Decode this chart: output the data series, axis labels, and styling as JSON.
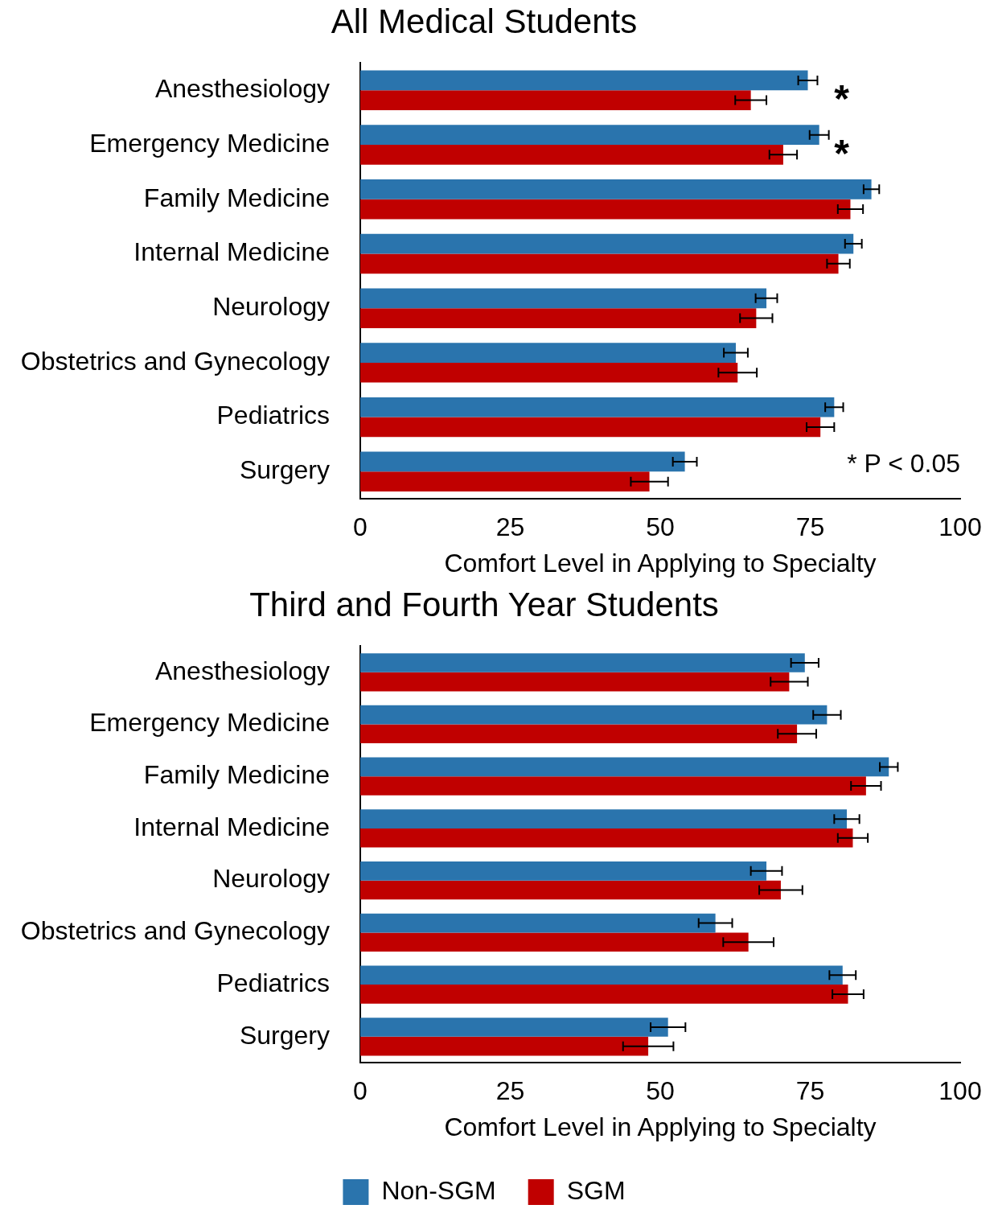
{
  "chart_data": [
    {
      "type": "bar",
      "orientation": "horizontal",
      "title": "All Medical Students",
      "xlabel": "Comfort Level in Applying to Specialty",
      "categories": [
        "Anesthesiology",
        "Emergency Medicine",
        "Family Medicine",
        "Internal Medicine",
        "Neurology",
        "Obstetrics and Gynecology",
        "Pediatrics",
        "Surgery"
      ],
      "series": [
        {
          "color": "#2a74ad",
          "values": [
            74.6,
            76.5,
            85.2,
            82.2,
            67.7,
            62.6,
            79.0,
            54.1
          ],
          "errors": [
            1.6,
            1.6,
            1.3,
            1.4,
            1.8,
            2.0,
            1.5,
            2.0
          ]
        },
        {
          "color": "#c00000",
          "values": [
            65.1,
            70.5,
            81.7,
            79.7,
            66.0,
            62.9,
            76.7,
            48.2
          ],
          "errors": [
            2.6,
            2.3,
            2.1,
            1.9,
            2.7,
            3.2,
            2.3,
            3.1
          ]
        }
      ],
      "xlim": [
        0,
        100
      ],
      "xticks": [
        0,
        25,
        50,
        75,
        100
      ],
      "grid": false,
      "legend": false,
      "annotations": [
        "*",
        "*",
        "* P < 0.05"
      ]
    },
    {
      "type": "bar",
      "orientation": "horizontal",
      "title": "Third and Fourth Year Students",
      "xlabel": "Comfort Level in Applying to Specialty",
      "categories": [
        "Anesthesiology",
        "Emergency Medicine",
        "Family Medicine",
        "Internal Medicine",
        "Neurology",
        "Obstetrics and Gynecology",
        "Pediatrics",
        "Surgery"
      ],
      "series": [
        {
          "name": "Non-SGM",
          "color": "#2a74ad",
          "values": [
            74.1,
            77.8,
            88.1,
            81.1,
            67.7,
            59.2,
            80.4,
            51.3
          ],
          "errors": [
            2.3,
            2.3,
            1.5,
            2.1,
            2.6,
            2.8,
            2.2,
            2.9
          ]
        },
        {
          "name": "SGM",
          "color": "#c00000",
          "values": [
            71.5,
            72.8,
            84.3,
            82.1,
            70.1,
            64.7,
            81.3,
            48.0
          ],
          "errors": [
            3.1,
            3.2,
            2.5,
            2.5,
            3.6,
            4.2,
            2.6,
            4.2
          ]
        }
      ],
      "xlim": [
        0,
        100
      ],
      "xticks": [
        0,
        25,
        50,
        75,
        100
      ],
      "grid": false,
      "legend": "bottom"
    }
  ]
}
